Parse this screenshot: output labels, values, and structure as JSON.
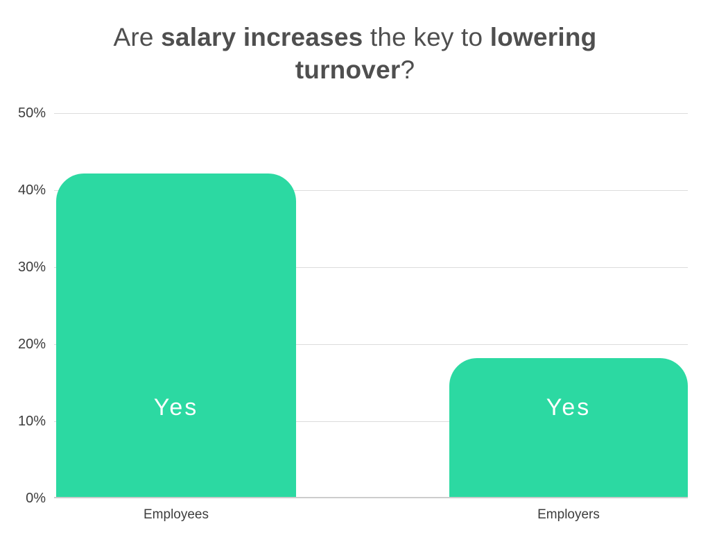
{
  "page": {
    "background": "#ffffff"
  },
  "title": {
    "full_text": "Are salary increases the key to lowering turnover?",
    "color": "#4f4f4f",
    "lines": [
      {
        "segments": [
          {
            "text": "Are ",
            "bold": false
          },
          {
            "text": "salary increases",
            "bold": true
          },
          {
            "text": " the key to ",
            "bold": false
          },
          {
            "text": "lowering",
            "bold": true
          }
        ]
      },
      {
        "segments": [
          {
            "text": "turnover",
            "bold": true
          },
          {
            "text": "?",
            "bold": false
          }
        ]
      }
    ]
  },
  "chart_data": {
    "type": "bar",
    "title": "Are salary increases the key to lowering turnover?",
    "categories": [
      "Employees",
      "Employers"
    ],
    "values": [
      42,
      18
    ],
    "bar_labels": [
      "Yes",
      "Yes"
    ],
    "ylim": [
      0,
      50
    ],
    "yticks": [
      0,
      10,
      20,
      30,
      40,
      50
    ],
    "ytick_labels": [
      "0%",
      "10%",
      "20%",
      "30%",
      "40%",
      "50%"
    ],
    "xlabel": "",
    "ylabel": "",
    "grid": true,
    "legend_position": "none",
    "bar_color": "#2cd9a2",
    "bar_label_color": "#ffffff",
    "gridline_color": "#dcdcdc",
    "axis_text_color": "#3d3d3d"
  }
}
